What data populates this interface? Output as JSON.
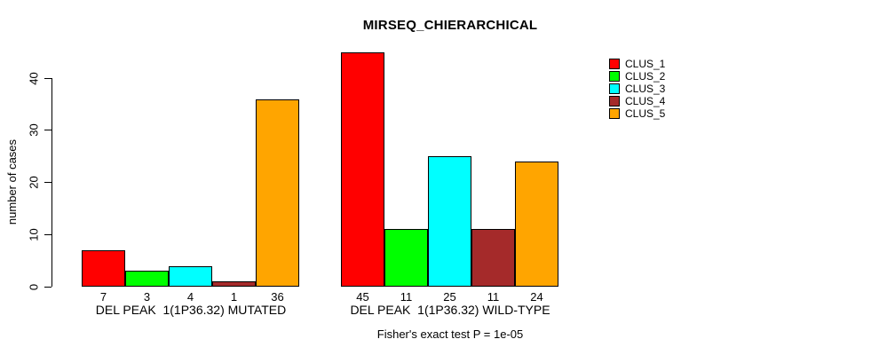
{
  "chart_data": {
    "type": "bar",
    "title": "MIRSEQ_CHIERARCHICAL",
    "ylabel": "number of cases",
    "ylim": [
      0,
      45
    ],
    "yticks": [
      0,
      10,
      20,
      30,
      40
    ],
    "grid": false,
    "legend_position": "top-right",
    "series": [
      {
        "name": "CLUS_1",
        "color": "#FF0000",
        "values": [
          7,
          45
        ]
      },
      {
        "name": "CLUS_2",
        "color": "#00FF00",
        "values": [
          3,
          11
        ]
      },
      {
        "name": "CLUS_3",
        "color": "#00FFFF",
        "values": [
          4,
          25
        ]
      },
      {
        "name": "CLUS_4",
        "color": "#A52A2A",
        "values": [
          1,
          11
        ]
      },
      {
        "name": "CLUS_5",
        "color": "#FFA500",
        "values": [
          36,
          24
        ]
      }
    ],
    "groups": [
      {
        "label": "DEL PEAK  1(1P36.32) MUTATED",
        "values": [
          7,
          3,
          4,
          1,
          36
        ]
      },
      {
        "label": "DEL PEAK  1(1P36.32) WILD-TYPE",
        "values": [
          45,
          11,
          25,
          11,
          24
        ]
      }
    ],
    "footnote": "Fisher's exact test P = 1e-05"
  }
}
